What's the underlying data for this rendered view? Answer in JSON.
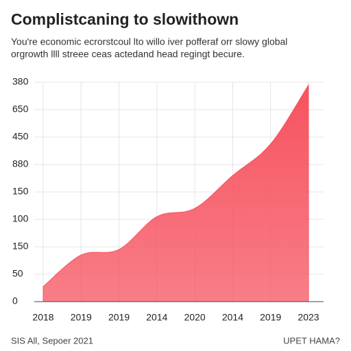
{
  "chart_data": {
    "type": "area",
    "title": "Complistcaning to slowithown",
    "subtitle": [
      "You're economic ecrorstcoul lto willo iver pofferaf orr slowy global",
      "orgrowth llll streee ceas actedand head regingt becure."
    ],
    "categories": [
      "2018",
      "2019",
      "2019",
      "2014",
      "2020",
      "2014",
      "2019",
      "2023"
    ],
    "values": [
      0.55,
      1.7,
      1.9,
      3.1,
      3.4,
      4.6,
      5.75,
      7.9
    ],
    "color": "#f6535f",
    "ylim": [
      0,
      8
    ],
    "yticks": [
      {
        "value": 0,
        "label": "0"
      },
      {
        "value": 1,
        "label": "50"
      },
      {
        "value": 2,
        "label": "150"
      },
      {
        "value": 3,
        "label": "100"
      },
      {
        "value": 4,
        "label": "150"
      },
      {
        "value": 5,
        "label": "880"
      },
      {
        "value": 6,
        "label": "450"
      },
      {
        "value": 7,
        "label": "650"
      },
      {
        "value": 8,
        "label": "380"
      }
    ],
    "grid": true,
    "footer_left": "SIS All, Sepoer 2021",
    "footer_right": "UPET HAMA?"
  }
}
